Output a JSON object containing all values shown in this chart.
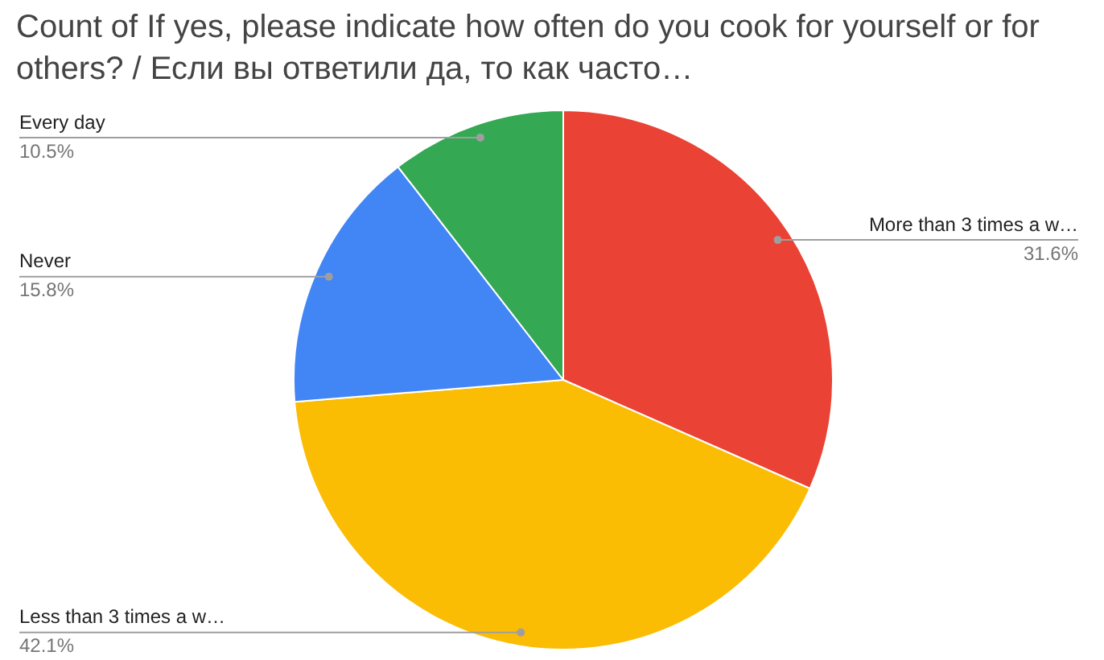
{
  "chart_data": {
    "type": "pie",
    "title": "Count of If yes, please indicate how often do you cook for yourself or for others? / Если вы ответили да, то как часто…",
    "categories": [
      "More than 3 times a w…",
      "Less than 3 times a w…",
      "Never",
      "Every day"
    ],
    "values": [
      31.6,
      42.1,
      15.8,
      10.5
    ],
    "value_labels": [
      "31.6%",
      "42.1%",
      "15.8%",
      "10.5%"
    ],
    "colors": [
      "#ea4335",
      "#fbbc04",
      "#4285f4",
      "#34a853"
    ],
    "legend": false
  }
}
